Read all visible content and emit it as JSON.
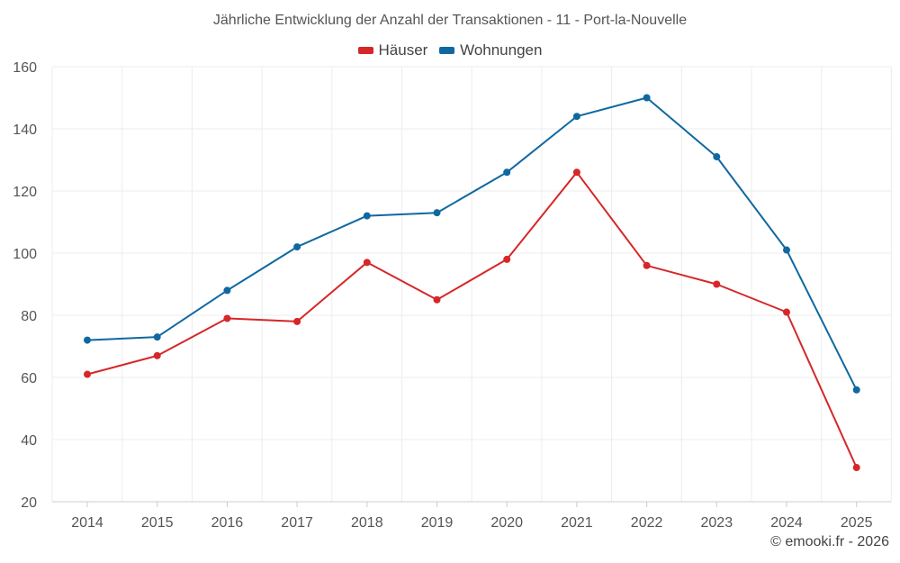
{
  "chart_data": {
    "type": "line",
    "title": "Jährliche Entwicklung der Anzahl der Transaktionen - 11 - Port-la-Nouvelle",
    "xlabel": "",
    "ylabel": "",
    "x": [
      "2014",
      "2015",
      "2016",
      "2017",
      "2018",
      "2019",
      "2020",
      "2021",
      "2022",
      "2023",
      "2024",
      "2025"
    ],
    "ylim": [
      20,
      160
    ],
    "yticks": [
      20,
      40,
      60,
      80,
      100,
      120,
      140,
      160
    ],
    "grid": true,
    "legend_position": "top-center",
    "series": [
      {
        "name": "Häuser",
        "color": "#d62728",
        "values": [
          61,
          67,
          79,
          78,
          97,
          85,
          98,
          126,
          96,
          90,
          81,
          31
        ]
      },
      {
        "name": "Wohnungen",
        "color": "#1068a0",
        "values": [
          72,
          73,
          88,
          102,
          112,
          113,
          126,
          144,
          150,
          131,
          101,
          56
        ]
      }
    ]
  },
  "credit": "© emooki.fr - 2026"
}
